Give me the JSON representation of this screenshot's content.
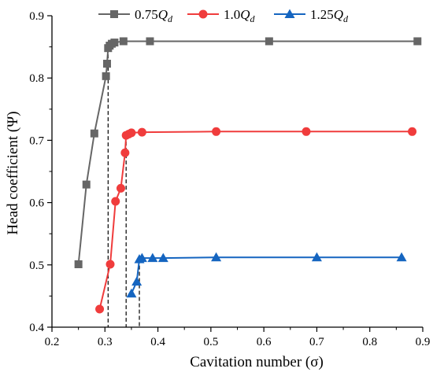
{
  "chart_data": {
    "type": "line",
    "title": "",
    "xlabel": "Cavitation number (σ)",
    "ylabel": "Head coefficient (Ψ)",
    "xlim": [
      0.2,
      0.9
    ],
    "ylim": [
      0.4,
      0.9
    ],
    "xticks": [
      0.2,
      0.3,
      0.4,
      0.5,
      0.6,
      0.7,
      0.8,
      0.9
    ],
    "yticks": [
      0.4,
      0.5,
      0.6,
      0.7,
      0.8,
      0.9
    ],
    "xtick_labels": [
      "0.2",
      "0.3",
      "0.4",
      "0.5",
      "0.6",
      "0.7",
      "0.8",
      "0.9"
    ],
    "ytick_labels": [
      "0.4",
      "0.5",
      "0.6",
      "0.7",
      "0.8",
      "0.9"
    ],
    "grid": false,
    "legend_position": "top",
    "series": [
      {
        "name": "0.75Q_d",
        "legend_main": "0.75",
        "legend_sym": "Q",
        "legend_sub": "d",
        "color": "#666666",
        "marker": "square",
        "x": [
          0.25,
          0.265,
          0.28,
          0.302,
          0.304,
          0.306,
          0.309,
          0.313,
          0.318,
          0.335,
          0.385,
          0.61,
          0.89
        ],
        "y": [
          0.501,
          0.629,
          0.711,
          0.803,
          0.823,
          0.848,
          0.852,
          0.855,
          0.857,
          0.859,
          0.859,
          0.859,
          0.859
        ]
      },
      {
        "name": "1.0Q_d",
        "legend_main": "1.0",
        "legend_sym": "Q",
        "legend_sub": "d",
        "color": "#f03c3c",
        "marker": "circle",
        "x": [
          0.29,
          0.31,
          0.32,
          0.33,
          0.338,
          0.34,
          0.345,
          0.35,
          0.37,
          0.51,
          0.68,
          0.88
        ],
        "y": [
          0.429,
          0.501,
          0.602,
          0.623,
          0.68,
          0.708,
          0.71,
          0.712,
          0.713,
          0.714,
          0.714,
          0.714
        ]
      },
      {
        "name": "1.25Q_d",
        "legend_main": "1.25",
        "legend_sym": "Q",
        "legend_sub": "d",
        "color": "#1565c0",
        "marker": "triangle",
        "x": [
          0.35,
          0.36,
          0.365,
          0.37,
          0.39,
          0.41,
          0.51,
          0.7,
          0.86
        ],
        "y": [
          0.454,
          0.473,
          0.509,
          0.511,
          0.511,
          0.511,
          0.512,
          0.512,
          0.512
        ]
      }
    ],
    "reference_lines": [
      {
        "x": 0.306,
        "y": 0.848
      },
      {
        "x": 0.34,
        "y": 0.708
      },
      {
        "x": 0.365,
        "y": 0.509
      }
    ]
  }
}
